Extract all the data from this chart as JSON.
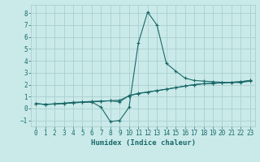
{
  "xlabel": "Humidex (Indice chaleur)",
  "background_color": "#caeaea",
  "grid_color": "#aacece",
  "line_color": "#1a6868",
  "xlim": [
    -0.5,
    23.5
  ],
  "ylim": [
    -1.5,
    8.7
  ],
  "xticks": [
    0,
    1,
    2,
    3,
    4,
    5,
    6,
    7,
    8,
    9,
    10,
    11,
    12,
    13,
    14,
    15,
    16,
    17,
    18,
    19,
    20,
    21,
    22,
    23
  ],
  "yticks": [
    -1,
    0,
    1,
    2,
    3,
    4,
    5,
    6,
    7,
    8
  ],
  "series": [
    {
      "x": [
        0,
        1,
        2,
        3,
        4,
        5,
        6,
        7,
        8,
        9,
        10,
        11,
        12,
        13,
        14,
        15,
        16,
        17,
        18,
        19,
        20,
        21,
        22,
        23
      ],
      "y": [
        0.4,
        0.35,
        0.38,
        0.45,
        0.52,
        0.55,
        0.6,
        0.62,
        0.65,
        0.55,
        1.1,
        1.25,
        1.38,
        1.5,
        1.62,
        1.75,
        1.88,
        2.0,
        2.08,
        2.12,
        2.15,
        2.2,
        2.25,
        2.35
      ]
    },
    {
      "x": [
        0,
        1,
        2,
        3,
        4,
        5,
        6,
        7,
        8,
        9,
        10,
        11,
        12,
        13,
        14,
        15,
        16,
        17,
        18,
        19,
        20,
        21,
        22,
        23
      ],
      "y": [
        0.4,
        0.35,
        0.38,
        0.42,
        0.48,
        0.52,
        0.55,
        0.1,
        -1.1,
        -1.0,
        0.1,
        5.5,
        8.1,
        7.0,
        3.8,
        3.15,
        2.55,
        2.35,
        2.3,
        2.25,
        2.2,
        2.18,
        2.18,
        2.3
      ]
    },
    {
      "x": [
        0,
        1,
        2,
        3,
        4,
        5,
        6,
        7,
        8,
        9,
        10,
        11,
        12,
        13,
        14,
        15,
        16,
        17,
        18,
        19,
        20,
        21,
        22,
        23
      ],
      "y": [
        0.4,
        0.35,
        0.38,
        0.42,
        0.48,
        0.52,
        0.55,
        0.6,
        0.65,
        0.7,
        1.05,
        1.28,
        1.38,
        1.5,
        1.62,
        1.75,
        1.88,
        2.0,
        2.08,
        2.12,
        2.15,
        2.2,
        2.25,
        2.35
      ]
    }
  ]
}
